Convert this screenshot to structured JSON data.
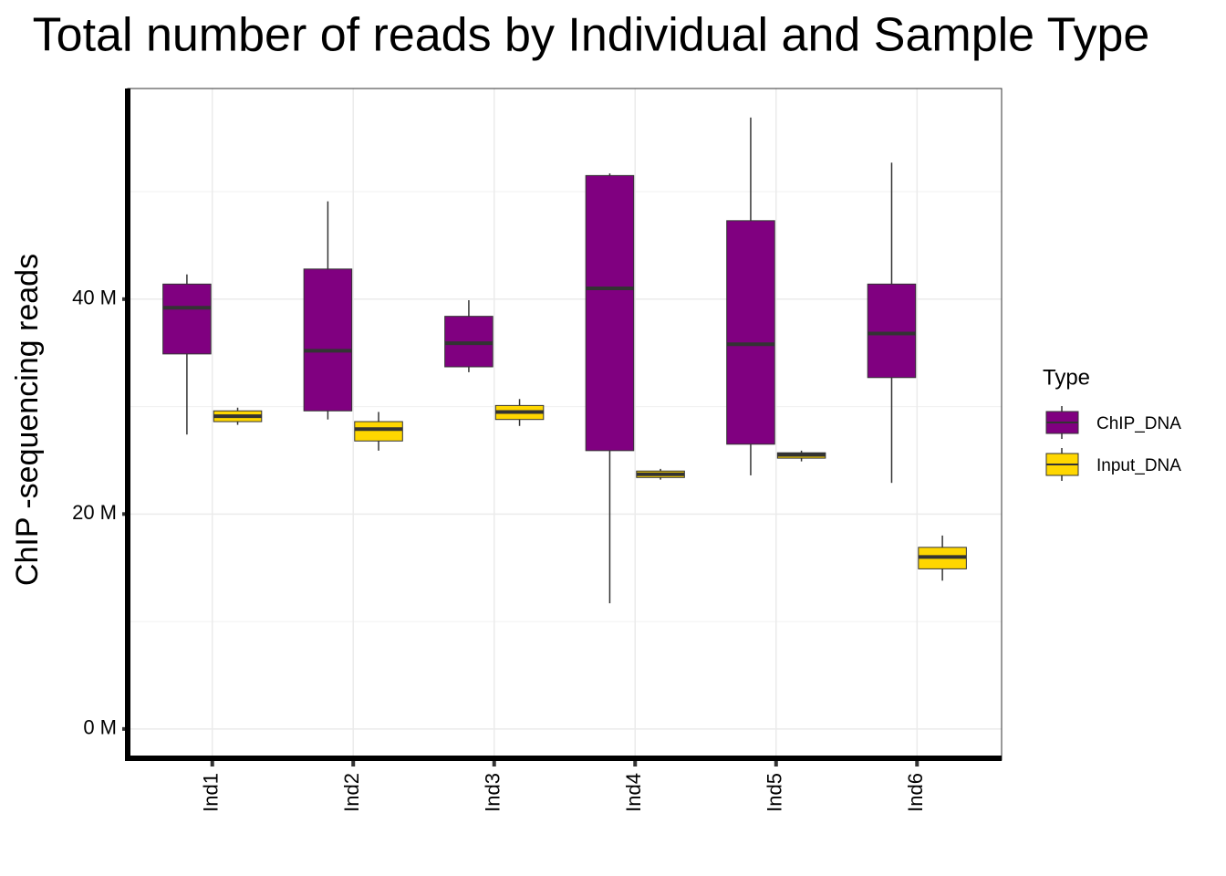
{
  "chart_data": {
    "type": "box",
    "title": "Total number of reads by Individual and Sample Type",
    "y_label": "ChIP -sequencing reads",
    "legend_title": "Type",
    "legend_position": "right",
    "categories": [
      "Ind1",
      "Ind2",
      "Ind3",
      "Ind4",
      "Ind5",
      "Ind6"
    ],
    "series": [
      {
        "name": "ChIP_DNA",
        "color": "#800080",
        "min": [
          27.4,
          28.8,
          33.2,
          11.7,
          23.6,
          22.9
        ],
        "q1": [
          34.9,
          29.6,
          33.7,
          25.9,
          26.5,
          32.7
        ],
        "median": [
          39.2,
          35.2,
          35.9,
          41.0,
          35.8,
          36.8
        ],
        "q3": [
          41.4,
          42.8,
          38.4,
          51.5,
          47.3,
          41.4
        ],
        "max": [
          42.3,
          49.1,
          39.9,
          51.7,
          56.9,
          52.7
        ]
      },
      {
        "name": "Input_DNA",
        "color": "#ffd700",
        "min": [
          28.3,
          25.9,
          28.2,
          23.2,
          24.9,
          13.8
        ],
        "q1": [
          28.6,
          26.8,
          28.8,
          23.4,
          25.2,
          14.9
        ],
        "median": [
          29.1,
          27.9,
          29.5,
          23.7,
          25.5,
          16.0
        ],
        "q3": [
          29.6,
          28.6,
          30.1,
          24.0,
          25.7,
          16.9
        ],
        "max": [
          29.9,
          29.5,
          30.7,
          24.2,
          25.9,
          18.0
        ]
      }
    ],
    "ylim": [
      -2.9,
      59.6
    ],
    "yticks": [
      {
        "value": 0,
        "label": "0 M"
      },
      {
        "value": 20,
        "label": "20 M"
      },
      {
        "value": 40,
        "label": "40 M"
      }
    ],
    "y_minor_ticks": [
      10,
      30,
      50
    ],
    "grid": true
  }
}
